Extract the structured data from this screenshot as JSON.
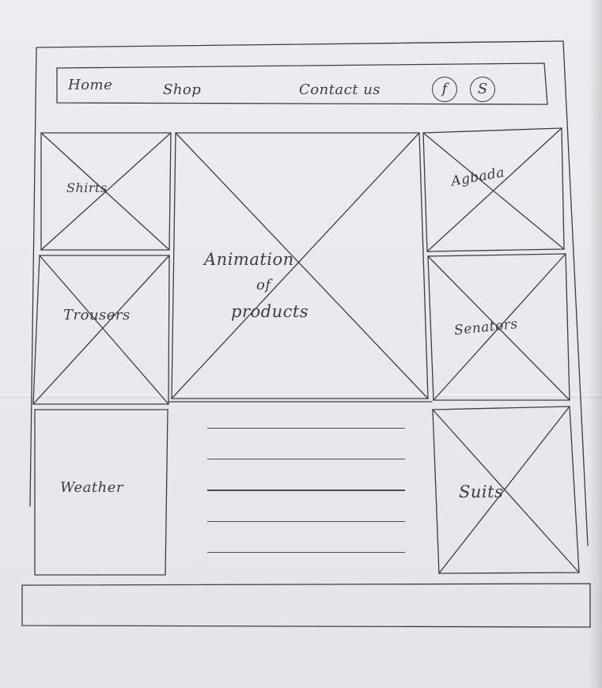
{
  "nav": {
    "home": "Home",
    "shop": "Shop",
    "contact": "Contact us",
    "social": {
      "facebook": "f",
      "second": "S"
    }
  },
  "left_panels": {
    "shirts": "Shirts",
    "trousers": "Trousers",
    "weather": "Weather"
  },
  "center": {
    "line1": "Animation",
    "line2": "of",
    "line3": "products"
  },
  "right_panels": {
    "agbada": "Agbada",
    "senators": "Senators",
    "suits": "Suits"
  },
  "stroke_color": "#3b3d45"
}
